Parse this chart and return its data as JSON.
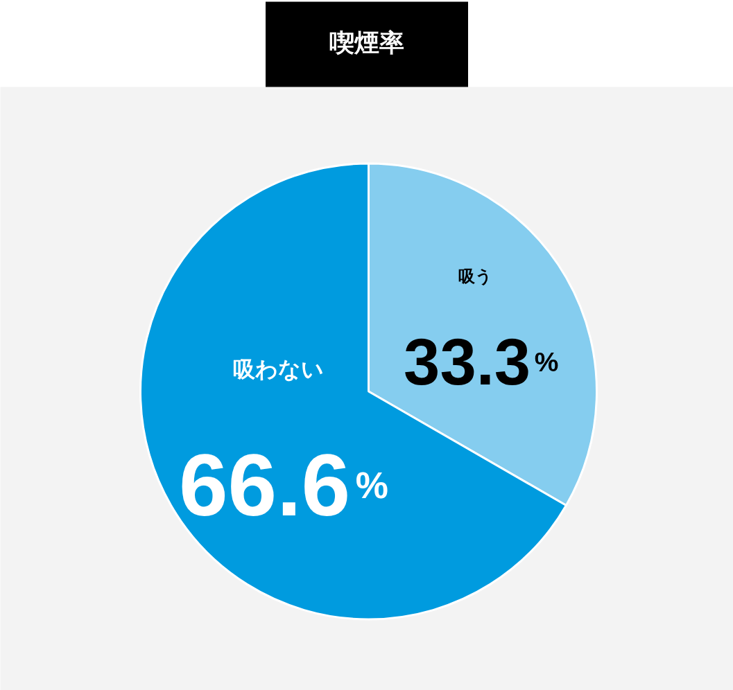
{
  "chart_data": {
    "type": "pie",
    "title": "喫煙率",
    "categories": [
      "吸う",
      "吸わない"
    ],
    "values": [
      33.3,
      66.6
    ],
    "colors": [
      "#85cdef",
      "#009bdf"
    ],
    "value_labels": [
      "33.3%",
      "66.6%"
    ]
  }
}
